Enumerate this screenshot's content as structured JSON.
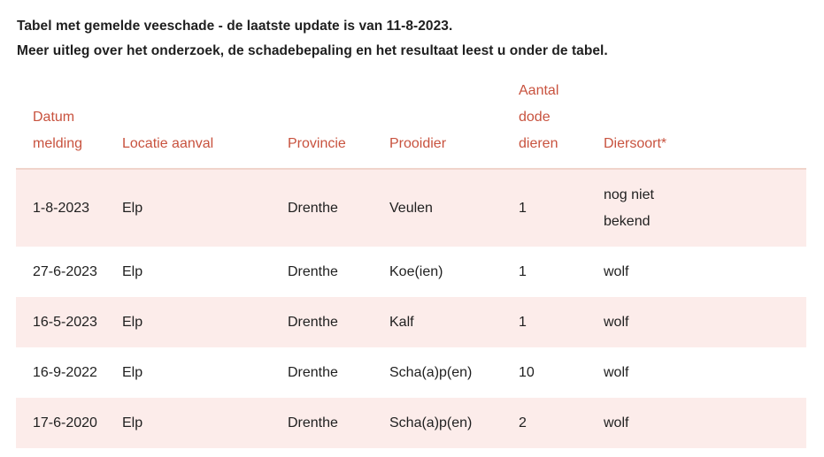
{
  "intro": {
    "line1": "Tabel met gemelde veeschade - de laatste update is van 11-8-2023.",
    "line2": "Meer uitleg over het onderzoek, de schadebepaling en het resultaat leest u onder de tabel."
  },
  "table": {
    "headers": [
      "Datum melding",
      "Locatie aanval",
      "Provincie",
      "Prooidier",
      "Aantal dode dieren",
      "Diersoort*"
    ],
    "rows": [
      [
        "1-8-2023",
        "Elp",
        "Drenthe",
        "Veulen",
        "1",
        "nog niet bekend"
      ],
      [
        "27-6-2023",
        "Elp",
        "Drenthe",
        "Koe(ien)",
        "1",
        "wolf"
      ],
      [
        "16-5-2023",
        "Elp",
        "Drenthe",
        "Kalf",
        "1",
        "wolf"
      ],
      [
        "16-9-2022",
        "Elp",
        "Drenthe",
        "Scha(a)p(en)",
        "10",
        "wolf"
      ],
      [
        "17-6-2020",
        "Elp",
        "Drenthe",
        "Scha(a)p(en)",
        "2",
        "wolf"
      ]
    ]
  },
  "colors": {
    "header_text": "#c8523e",
    "row_shade": "#fcecea",
    "header_rule": "#f0d4cb"
  }
}
